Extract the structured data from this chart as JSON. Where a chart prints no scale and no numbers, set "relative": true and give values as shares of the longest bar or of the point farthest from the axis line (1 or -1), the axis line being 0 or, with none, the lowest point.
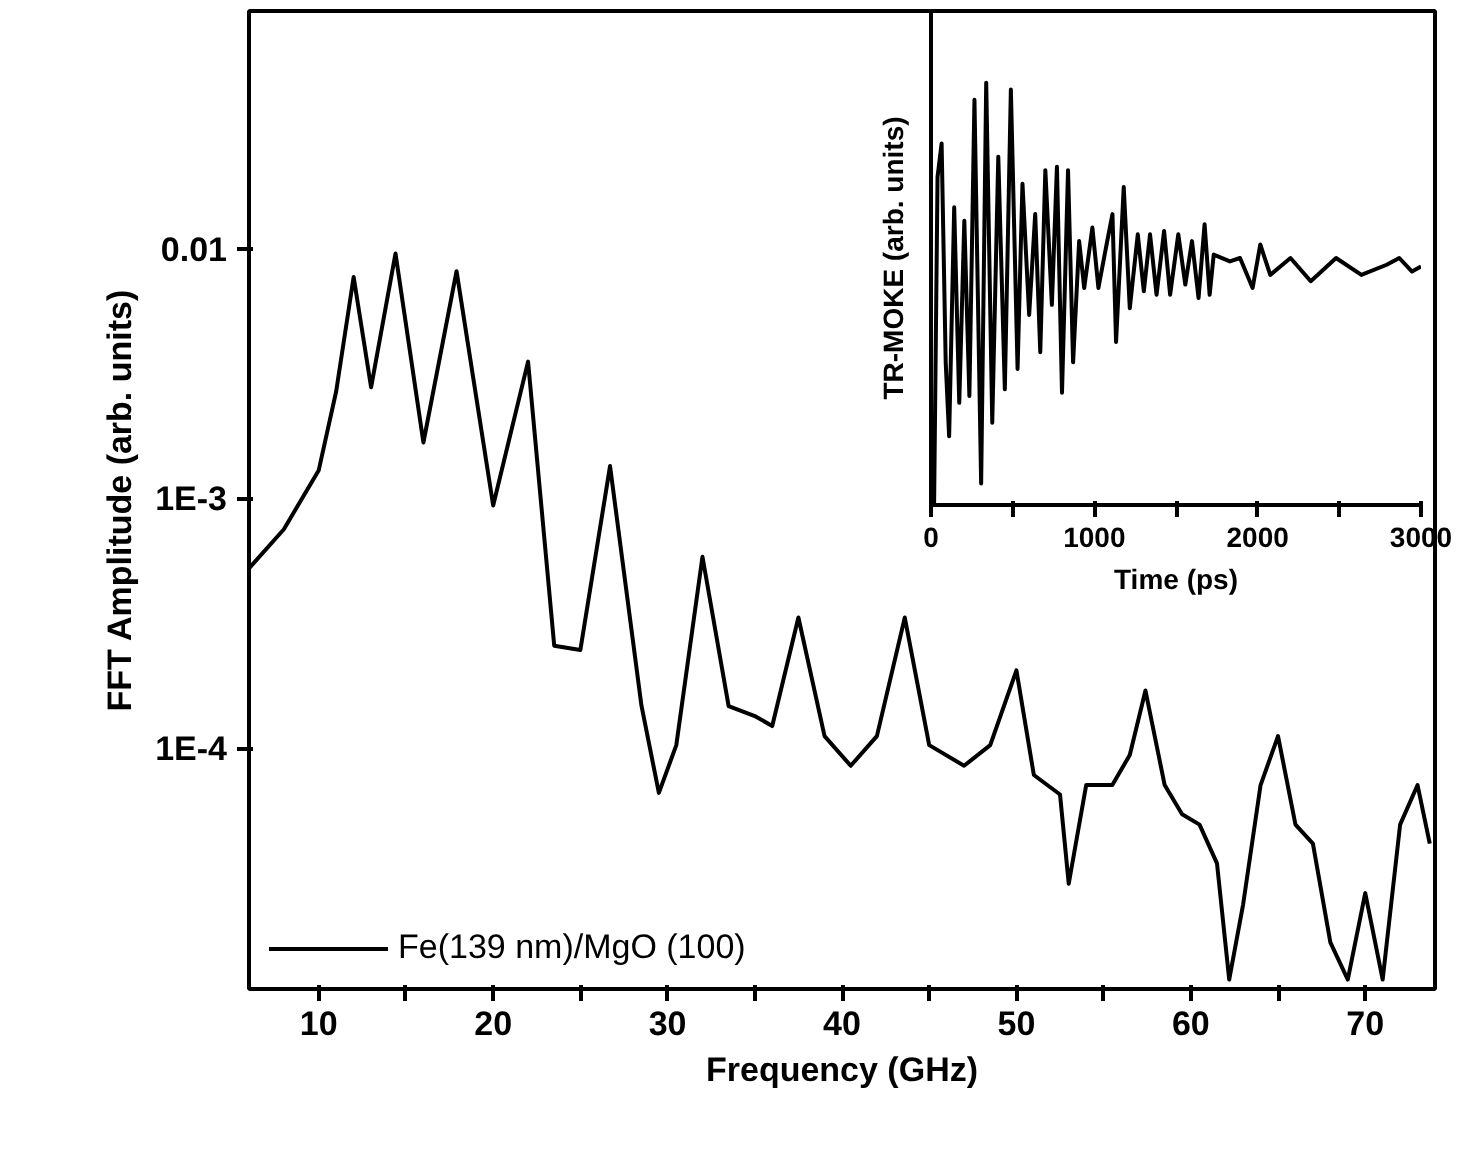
{
  "chart_data": [
    {
      "type": "line",
      "xlabel": "Frequency (GHz)",
      "ylabel": "FFT Amplitude (arb. units)",
      "log": "y",
      "legend": "bottom left",
      "xlim": [
        6,
        74
      ],
      "xticks": [
        10,
        {
          "value": 15,
          "label": null
        },
        20,
        {
          "value": 25,
          "label": null
        },
        30,
        {
          "value": 35,
          "label": null
        },
        40,
        {
          "value": 45,
          "label": null
        },
        50,
        {
          "value": 55,
          "label": null
        },
        60,
        {
          "value": 65,
          "label": null
        },
        70
      ],
      "ylim": [
        1.1e-05,
        0.09
      ],
      "yticks": [
        {
          "value": 0.0001,
          "label": "1E-4"
        },
        {
          "value": 0.001,
          "label": "1E-3"
        },
        0.01
      ],
      "x": [
        6,
        8,
        10,
        11,
        12,
        13,
        14.4,
        16,
        17.9,
        20,
        22,
        23.5,
        25,
        26.7,
        28.5,
        29.5,
        30.5,
        32,
        33.5,
        35,
        36,
        37.5,
        39,
        40.5,
        42,
        43.6,
        45,
        47,
        48.5,
        50,
        51,
        52.5,
        53,
        54,
        55.5,
        56.5,
        57.4,
        58.5,
        59.5,
        60.5,
        61.5,
        62.2,
        63,
        64,
        65,
        66,
        67,
        68,
        69,
        70,
        71,
        72,
        73,
        73.7
      ],
      "series": [
        {
          "name": "Fe(139 nm)/MgO (100)",
          "color": "#000000",
          "values": [
            0.00053,
            0.00076,
            0.00131,
            0.00271,
            0.00776,
            0.00281,
            0.00964,
            0.00169,
            0.00819,
            0.000946,
            0.00356,
            0.00026,
            0.00025,
            0.00136,
            0.00015,
            6.7e-05,
            0.000104,
            0.00059,
            0.000149,
            0.000136,
            0.000124,
            0.000337,
            0.000113,
            8.6e-05,
            0.000113,
            0.000337,
            0.000104,
            8.6e-05,
            0.000104,
            0.000207,
            7.9e-05,
            6.6e-05,
            2.9e-05,
            7.2e-05,
            7.2e-05,
            9.5e-05,
            0.000172,
            7.2e-05,
            5.5e-05,
            5e-05,
            3.5e-05,
            1.2e-05,
            2.4e-05,
            7.2e-05,
            0.000113,
            5e-05,
            4.2e-05,
            1.69e-05,
            1.2e-05,
            2.66e-05,
            1.2e-05,
            5e-05,
            7.2e-05,
            4.2e-05
          ]
        }
      ]
    },
    {
      "type": "line",
      "xlabel": "Time (ps)",
      "ylabel": "TR-MOKE (arb. units)",
      "relative": true,
      "tick_labels": "x",
      "xlim": [
        0,
        3000
      ],
      "xticks": [
        0,
        {
          "value": 500,
          "label": null
        },
        1000,
        {
          "value": 1500,
          "label": null
        },
        2000,
        {
          "value": 2500,
          "label": null
        },
        3000
      ],
      "x": [
        10,
        19,
        40,
        65,
        90,
        111,
        142,
        173,
        204,
        235,
        266,
        307,
        338,
        375,
        412,
        452,
        489,
        530,
        560,
        601,
        638,
        669,
        700,
        740,
        771,
        802,
        839,
        870,
        907,
        938,
        988,
        1025,
        1071,
        1111,
        1133,
        1180,
        1217,
        1266,
        1303,
        1341,
        1381,
        1427,
        1464,
        1514,
        1557,
        1598,
        1638,
        1675,
        1706,
        1731,
        1830,
        1892,
        1969,
        2016,
        2077,
        2201,
        2325,
        2480,
        2635,
        2790,
        2867,
        2945,
        3000
      ],
      "series": [
        {
          "color": "#000000",
          "values": [
            0,
            0.003,
            0.777,
            0.856,
            0.338,
            0.163,
            0.705,
            0.242,
            0.673,
            0.258,
            0.96,
            0.051,
            1.0,
            0.195,
            0.825,
            0.274,
            0.984,
            0.322,
            0.761,
            0.45,
            0.689,
            0.362,
            0.793,
            0.474,
            0.801,
            0.266,
            0.793,
            0.338,
            0.625,
            0.514,
            0.657,
            0.514,
            0.609,
            0.689,
            0.386,
            0.753,
            0.466,
            0.641,
            0.506,
            0.641,
            0.498,
            0.649,
            0.498,
            0.641,
            0.522,
            0.625,
            0.49,
            0.665,
            0.498,
            0.593,
            0.577,
            0.585,
            0.514,
            0.617,
            0.545,
            0.585,
            0.53,
            0.585,
            0.545,
            0.569,
            0.585,
            0.553,
            0.565
          ]
        }
      ]
    }
  ]
}
